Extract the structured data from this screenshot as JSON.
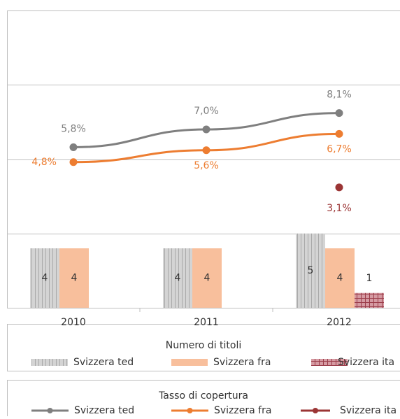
{
  "chart_data": [
    {
      "type": "bar",
      "legend_title": "Numero di titoli",
      "categories": [
        "2010",
        "2011",
        "2012"
      ],
      "series": [
        {
          "name": "Svizzera ted",
          "color": "#c9c9c9",
          "values": [
            4,
            4,
            5
          ]
        },
        {
          "name": "Svizzera fra",
          "color": "#f8bf9c",
          "values": [
            4,
            4,
            4
          ]
        },
        {
          "name": "Svizzera ita",
          "color": "#c7868f",
          "values": [
            null,
            null,
            1
          ]
        }
      ],
      "ylim": [
        0,
        20
      ],
      "yticks": [
        0,
        5,
        10,
        15,
        20
      ],
      "grid": true
    },
    {
      "type": "line",
      "legend_title": "Tasso di copertura",
      "series": [
        {
          "name": "Svizzera ted",
          "color": "#7f7f7f",
          "values": [
            5.8,
            7.0,
            8.1
          ],
          "value_labels": [
            "5,8%",
            "7,0%",
            "8,1%"
          ]
        },
        {
          "name": "Svizzera fra",
          "color": "#ed7d31",
          "values": [
            4.8,
            5.6,
            6.7
          ],
          "value_labels": [
            "4,8%",
            "5,6%",
            "6,7%"
          ]
        },
        {
          "name": "Svizzera ita",
          "color": "#9b3535",
          "values": [
            null,
            null,
            3.1
          ],
          "value_labels": [
            null,
            null,
            "3,1%"
          ]
        }
      ],
      "ylim": [
        -5,
        15
      ]
    }
  ]
}
